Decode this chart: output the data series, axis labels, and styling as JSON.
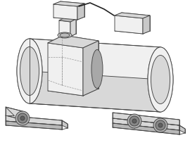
{
  "bg_color": "#ffffff",
  "lc": "#444444",
  "fl": "#f0f0f0",
  "fm": "#d8d8d8",
  "fd": "#b8b8b8",
  "fc": "#c8c8c8",
  "dashed": "#999999",
  "roller_outer": "#b0b0b0",
  "roller_inner": "#888888",
  "roller_hub": "#606060",
  "cable": "#222222",
  "seal_gray": "#a8a8a8",
  "figsize": [
    2.7,
    2.06
  ],
  "dpi": 100
}
